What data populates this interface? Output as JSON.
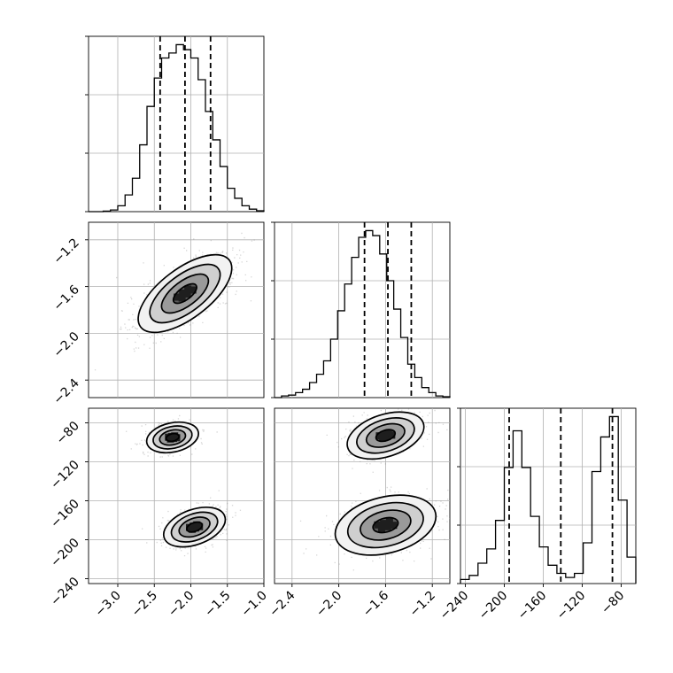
{
  "chart_data": {
    "type": "corner",
    "variables": [
      {
        "range": [
          -3.4,
          -1.0
        ],
        "ticks": [
          -3.0,
          -2.5,
          -2.0,
          -1.5,
          -1.0
        ],
        "tick_labels": [
          "−3.0",
          "−2.5",
          "−2.0",
          "−1.5",
          "−1.0"
        ],
        "quantiles": [
          -2.42,
          -2.08,
          -1.73
        ],
        "histogram": {
          "bin_edges": [
            -3.4,
            -3.3,
            -3.2,
            -3.1,
            -3.0,
            -2.9,
            -2.8,
            -2.7,
            -2.6,
            -2.5,
            -2.4,
            -2.3,
            -2.2,
            -2.1,
            -2.0,
            -1.9,
            -1.8,
            -1.7,
            -1.6,
            -1.5,
            -1.4,
            -1.3,
            -1.2,
            -1.1,
            -1.0
          ],
          "counts": [
            0,
            0,
            0.3,
            1.0,
            3.5,
            10,
            20,
            40,
            63,
            80,
            92,
            95,
            100,
            97,
            92,
            79,
            60,
            43,
            27,
            14,
            8,
            3.5,
            1.5,
            0.5
          ]
        }
      },
      {
        "range": [
          -2.55,
          -1.05
        ],
        "ticks": [
          -2.4,
          -2.0,
          -1.6,
          -1.2
        ],
        "tick_labels": [
          "−2.4",
          "−2.0",
          "−1.6",
          "−1.2"
        ],
        "quantiles": [
          -1.78,
          -1.58,
          -1.38
        ],
        "histogram": {
          "bin_edges": [
            -2.55,
            -2.49,
            -2.43,
            -2.37,
            -2.31,
            -2.25,
            -2.19,
            -2.13,
            -2.07,
            -2.01,
            -1.95,
            -1.89,
            -1.83,
            -1.77,
            -1.71,
            -1.65,
            -1.59,
            -1.53,
            -1.47,
            -1.41,
            -1.35,
            -1.29,
            -1.23,
            -1.17,
            -1.11,
            -1.05
          ],
          "counts": [
            0,
            1,
            1.5,
            3,
            5,
            9,
            14,
            22,
            35,
            52,
            68,
            84,
            96,
            100,
            97,
            86,
            70,
            53,
            36,
            20,
            12,
            6,
            3,
            1,
            0.5
          ]
        }
      },
      {
        "range": [
          -245,
          -65
        ],
        "ticks": [
          -240,
          -200,
          -160,
          -120,
          -80
        ],
        "tick_labels": [
          "−240",
          "−200",
          "−160",
          "−120",
          "−80"
        ],
        "quantiles": [
          -195,
          -142,
          -89
        ],
        "histogram": {
          "bin_edges": [
            -245,
            -236,
            -227,
            -218,
            -209,
            -200,
            -191,
            -182,
            -173,
            -164,
            -155,
            -146,
            -137,
            -128,
            -119,
            -110,
            -101,
            -92,
            -83,
            -74,
            -65
          ],
          "counts": [
            2,
            4,
            10,
            17,
            31,
            57,
            75,
            57,
            33,
            18,
            9,
            5,
            3,
            5,
            20,
            55,
            72,
            82,
            41,
            13
          ]
        }
      }
    ],
    "pairs": [
      {
        "x_var": 0,
        "y_var": 1,
        "modes": [
          {
            "center": [
              -2.08,
              -1.66
            ],
            "sd_major": 0.38,
            "sd_minor": 0.17,
            "angle_deg": 37,
            "weight": 1.0
          }
        ],
        "contour_sigmas": [
          0.5,
          1.0,
          1.5,
          2.0
        ]
      },
      {
        "x_var": 0,
        "y_var": 2,
        "modes": [
          {
            "center": [
              -2.25,
              -95
            ],
            "sd_major": 0.18,
            "sd_minor": 0.1,
            "angle_deg": 12,
            "weight": 0.5
          },
          {
            "center": [
              -1.95,
              -187
            ],
            "sd_major": 0.22,
            "sd_minor": 0.12,
            "angle_deg": 20,
            "weight": 0.5
          }
        ],
        "contour_sigmas": [
          0.5,
          1.0,
          1.5,
          2.0
        ]
      },
      {
        "x_var": 1,
        "y_var": 2,
        "modes": [
          {
            "center": [
              -1.6,
              -93
            ],
            "sd_major": 0.17,
            "sd_minor": 0.09,
            "angle_deg": 18,
            "weight": 0.5
          },
          {
            "center": [
              -1.6,
              -185
            ],
            "sd_major": 0.22,
            "sd_minor": 0.12,
            "angle_deg": 14,
            "weight": 0.5
          }
        ],
        "contour_sigmas": [
          0.5,
          1.0,
          1.5,
          2.0
        ]
      }
    ],
    "grid": true
  }
}
